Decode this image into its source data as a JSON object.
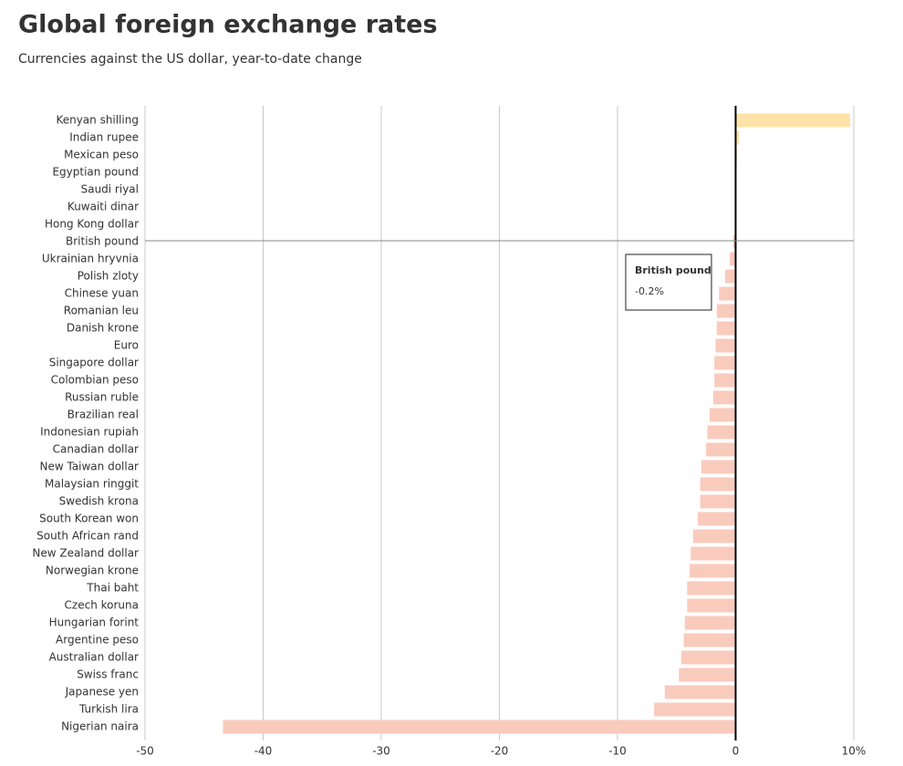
{
  "chart_data": {
    "type": "barh",
    "title": "Global foreign exchange rates",
    "subtitle": "Currencies against the US dollar, year-to-date change",
    "categories": [
      "Kenyan shilling",
      "Indian rupee",
      "Mexican peso",
      "Egyptian pound",
      "Saudi riyal",
      "Kuwaiti dinar",
      "Hong Kong dollar",
      "British pound",
      "Ukrainian hryvnia",
      "Polish zloty",
      "Chinese yuan",
      "Romanian leu",
      "Danish krone",
      "Euro",
      "Singapore dollar",
      "Colombian peso",
      "Russian ruble",
      "Brazilian real",
      "Indonesian rupiah",
      "Canadian dollar",
      "New Taiwan dollar",
      "Malaysian ringgit",
      "Swedish krona",
      "South Korean won",
      "South African rand",
      "New Zealand dollar",
      "Norwegian krone",
      "Thai baht",
      "Czech koruna",
      "Hungarian forint",
      "Argentine peso",
      "Australian dollar",
      "Swiss franc",
      "Japanese yen",
      "Turkish lira",
      "Nigerian naira"
    ],
    "values": [
      9.7,
      0.3,
      0.1,
      0,
      0,
      0,
      0,
      -0.2,
      -0.5,
      -0.9,
      -1.4,
      -1.6,
      -1.6,
      -1.7,
      -1.8,
      -1.8,
      -1.9,
      -2.2,
      -2.4,
      -2.5,
      -2.9,
      -3.0,
      -3.0,
      -3.2,
      -3.6,
      -3.8,
      -3.9,
      -4.1,
      -4.1,
      -4.3,
      -4.4,
      -4.6,
      -4.8,
      -6.0,
      -6.9,
      -43.4
    ],
    "positive_color": "#fde3a7",
    "negative_color": "#f9cbbd",
    "xlim": [
      -50,
      10
    ],
    "xticks": [
      -50,
      -40,
      -30,
      -20,
      -10,
      0,
      {
        "value": 10,
        "label": "10%"
      }
    ],
    "grid": true,
    "tooltip": {
      "title": "British pound",
      "text": "-0.2%"
    }
  }
}
